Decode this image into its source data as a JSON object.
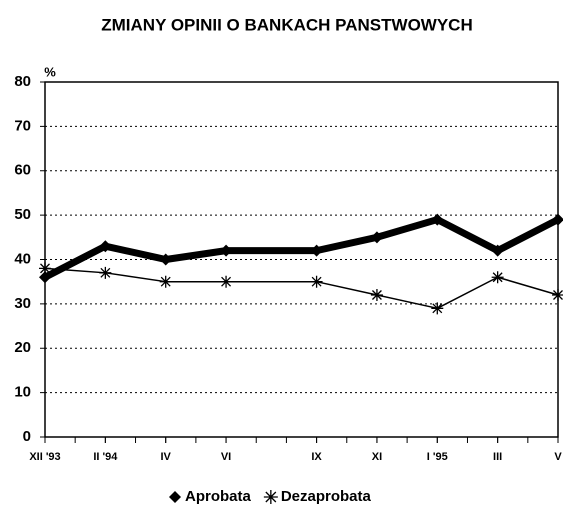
{
  "chart_data": {
    "type": "line",
    "title": "ZMIANY OPINII O BANKACH PANSTWOWYCH",
    "y_label": "%",
    "x": [
      0,
      2,
      4,
      6,
      9,
      11,
      13,
      15,
      17
    ],
    "xlim": [
      0,
      17
    ],
    "xticks": [
      {
        "value": 0,
        "label": "XII '93"
      },
      {
        "value": 2,
        "label": "II '94"
      },
      {
        "value": 4,
        "label": "IV"
      },
      {
        "value": 6,
        "label": "VI"
      },
      {
        "value": 9,
        "label": "IX"
      },
      {
        "value": 11,
        "label": "XI"
      },
      {
        "value": 13,
        "label": "I '95"
      },
      {
        "value": 15,
        "label": "III"
      },
      {
        "value": 17,
        "label": "V"
      }
    ],
    "ylim": [
      0,
      80
    ],
    "yticks": [
      0,
      10,
      20,
      30,
      40,
      50,
      60,
      70,
      80
    ],
    "grid": true,
    "series": [
      {
        "name": "Aprobata",
        "color": "#000000",
        "values": [
          36,
          43,
          40,
          42,
          42,
          45,
          49,
          42,
          49
        ]
      },
      {
        "name": "Dezaprobata",
        "color": "#000000",
        "values": [
          38,
          37,
          35,
          35,
          35,
          32,
          29,
          36,
          32
        ]
      }
    ]
  }
}
